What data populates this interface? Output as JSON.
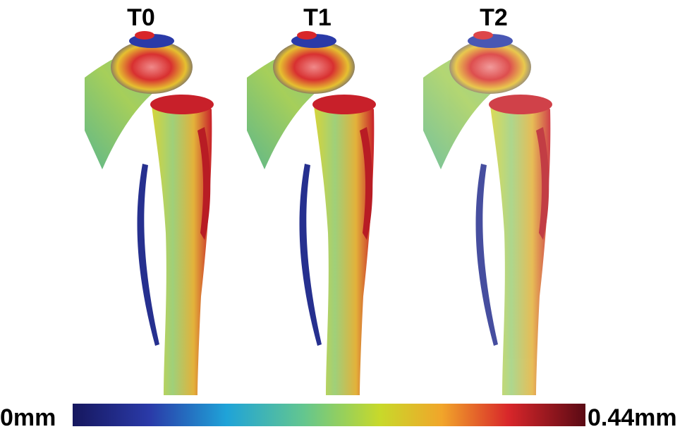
{
  "panels": [
    {
      "label": "T0"
    },
    {
      "label": "T1"
    },
    {
      "label": "T2"
    }
  ],
  "colorbar": {
    "min_label": "0mm",
    "max_label": "0.44mm"
  }
}
